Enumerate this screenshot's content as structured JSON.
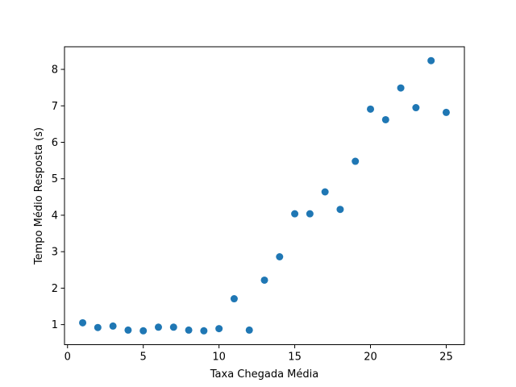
{
  "chart_data": {
    "type": "scatter",
    "title": "",
    "xlabel": "Taxa Chegada Média",
    "ylabel": "Tempo Médio Resposta (s)",
    "xlim": [
      -0.2,
      26.2
    ],
    "ylim": [
      0.45,
      8.62
    ],
    "xticks": [
      0,
      5,
      10,
      15,
      20,
      25
    ],
    "yticks": [
      1,
      2,
      3,
      4,
      5,
      6,
      7,
      8
    ],
    "xtick_labels": [
      "0",
      "5",
      "10",
      "15",
      "20",
      "25"
    ],
    "ytick_labels": [
      "1",
      "2",
      "3",
      "4",
      "5",
      "6",
      "7",
      "8"
    ],
    "grid": false,
    "marker_color": "#1f77b4",
    "x": [
      1,
      2,
      3,
      4,
      5,
      6,
      7,
      8,
      9,
      10,
      11,
      12,
      13,
      14,
      15,
      16,
      17,
      18,
      19,
      20,
      21,
      22,
      23,
      24,
      25
    ],
    "y": [
      1.05,
      0.92,
      0.96,
      0.85,
      0.83,
      0.93,
      0.93,
      0.85,
      0.83,
      0.89,
      1.71,
      0.85,
      2.22,
      2.86,
      4.04,
      4.04,
      4.64,
      4.16,
      5.48,
      6.91,
      6.62,
      7.49,
      6.95,
      8.24,
      6.82
    ]
  }
}
